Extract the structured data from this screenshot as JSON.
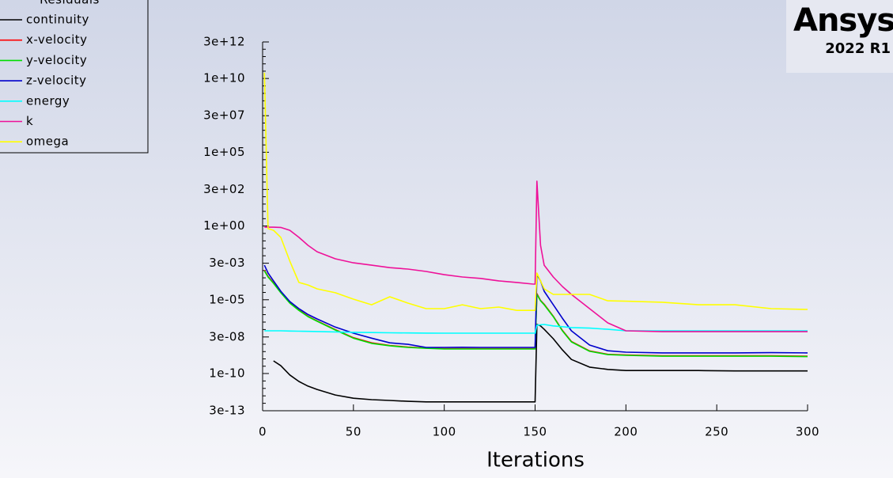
{
  "chart_data": {
    "type": "line",
    "legend_title": "Residuals",
    "logo": "Ansys",
    "version": "2022 R1",
    "xlabel": "Iterations",
    "yscale": "log",
    "legend": "upper left",
    "x": [
      1,
      3,
      6,
      10,
      15,
      20,
      25,
      30,
      40,
      50,
      60,
      70,
      80,
      90,
      100,
      110,
      120,
      130,
      140,
      149,
      150,
      151,
      153,
      155,
      160,
      165,
      170,
      180,
      190,
      200,
      220,
      240,
      260,
      280,
      300
    ],
    "xlim": [
      0,
      300
    ],
    "xticks": [
      0,
      50,
      100,
      150,
      200,
      250,
      300
    ],
    "ylim": [
      3e-13,
      3000000000000.0
    ],
    "yticks": [
      {
        "value": 3000000000000.0,
        "label": "3e+12"
      },
      {
        "value": 10000000000.0,
        "label": "1e+10"
      },
      {
        "value": 30000000.0,
        "label": "3e+07"
      },
      {
        "value": 100000.0,
        "label": "1e+05"
      },
      {
        "value": 300,
        "label": "3e+02"
      },
      {
        "value": 1,
        "label": "1e+00"
      },
      {
        "value": 0.003,
        "label": "3e-03"
      },
      {
        "value": 1e-05,
        "label": "1e-05"
      },
      {
        "value": 3e-08,
        "label": "3e-08"
      },
      {
        "value": 1e-10,
        "label": "1e-10"
      },
      {
        "value": 3e-13,
        "label": "3e-13"
      }
    ],
    "series": [
      {
        "name": "continuity",
        "color": "#000000",
        "values": [
          null,
          null,
          7.2e-10,
          3.4e-10,
          8e-11,
          2.9e-11,
          1.4e-11,
          8.3e-12,
          3.5e-12,
          2.1e-12,
          1.7e-12,
          1.5e-12,
          1.3e-12,
          1.2e-12,
          1.2e-12,
          1.2e-12,
          1.2e-12,
          1.2e-12,
          1.2e-12,
          1.2e-12,
          1.2e-12,
          2.1e-07,
          1.7e-07,
          1e-07,
          2.3e-08,
          4e-09,
          9e-10,
          2.7e-10,
          1.9e-10,
          1.6e-10,
          1.6e-10,
          1.6e-10,
          1.5e-10,
          1.5e-10,
          1.5e-10
        ]
      },
      {
        "name": "x-velocity",
        "color": "#ff0000",
        "values": [
          0.001,
          0.00038,
          0.00014,
          3.2e-05,
          6.3e-06,
          2e-06,
          7.6e-07,
          3.7e-07,
          9.5e-08,
          2.7e-08,
          1.2e-08,
          8e-09,
          6.2e-09,
          5.3e-09,
          4.8e-09,
          4.8e-09,
          4.8e-09,
          4.8e-09,
          4.8e-09,
          4.8e-09,
          4.8e-09,
          2.6e-05,
          9e-06,
          5e-06,
          7.6e-07,
          8.5e-08,
          1.5e-08,
          3.4e-09,
          2e-09,
          1.8e-09,
          1.6e-09,
          1.6e-09,
          1.6e-09,
          1.6e-09,
          1.5e-09
        ]
      },
      {
        "name": "y-velocity",
        "color": "#00dd00",
        "values": [
          0.0009,
          0.00035,
          0.00013,
          3e-05,
          5.9e-06,
          1.9e-06,
          7.2e-07,
          3.5e-07,
          8.9e-08,
          2.5e-08,
          1.1e-08,
          7.6e-09,
          5.9e-09,
          5.1e-09,
          4.6e-09,
          4.6e-09,
          4.6e-09,
          4.6e-09,
          4.6e-09,
          4.6e-09,
          4.6e-09,
          2.3e-05,
          8.5e-06,
          4.6e-06,
          7.2e-07,
          7.9e-08,
          1.4e-08,
          3.2e-09,
          1.9e-09,
          1.7e-09,
          1.5e-09,
          1.5e-09,
          1.5e-09,
          1.5e-09,
          1.4e-09
        ]
      },
      {
        "name": "z-velocity",
        "color": "#0000cc",
        "values": [
          0.0022,
          0.00065,
          0.00019,
          3.8e-05,
          7.6e-06,
          2.5e-06,
          1e-06,
          5e-07,
          1.4e-07,
          5.4e-08,
          2.5e-08,
          1.2e-08,
          9.5e-09,
          5.9e-09,
          5.9e-09,
          6e-09,
          5.9e-09,
          5.9e-09,
          5.9e-09,
          5.9e-09,
          5.9e-09,
          0.0005,
          0.00019,
          3.8e-05,
          4.6e-06,
          5.6e-07,
          7.9e-08,
          8.5e-09,
          3.5e-09,
          2.8e-09,
          2.5e-09,
          2.5e-09,
          2.5e-09,
          2.6e-09,
          2.5e-09
        ]
      },
      {
        "name": "energy",
        "color": "#00ffff",
        "values": [
          7.9e-08,
          7.9e-08,
          7.9e-08,
          7.9e-08,
          7.6e-08,
          7.4e-08,
          7.2e-08,
          7e-08,
          6.6e-08,
          6.2e-08,
          6e-08,
          5.8e-08,
          5.6e-08,
          5.5e-08,
          5.4e-08,
          5.4e-08,
          5.4e-08,
          5.4e-08,
          5.4e-08,
          5.4e-08,
          5.4e-08,
          1.9e-07,
          2e-07,
          2.1e-07,
          1.7e-07,
          1.5e-07,
          1.3e-07,
          1.2e-07,
          1e-07,
          7.9e-08,
          7.9e-08,
          7.9e-08,
          7.9e-08,
          7.9e-08,
          7.9e-08
        ]
      },
      {
        "name": "k",
        "color": "#ee1199",
        "values": [
          0.83,
          0.83,
          0.83,
          0.8,
          0.51,
          0.17,
          0.049,
          0.018,
          0.006,
          0.0032,
          0.0022,
          0.0015,
          0.0012,
          0.00083,
          0.0005,
          0.00035,
          0.00028,
          0.00019,
          0.00015,
          0.000115,
          0.000115,
          1100,
          0.049,
          0.0022,
          0.00035,
          7.9e-05,
          2.3e-05,
          2.5e-06,
          2.7e-07,
          7.9e-08,
          6.9e-08,
          6.9e-08,
          6.9e-08,
          6.9e-08,
          6.9e-08
        ]
      },
      {
        "name": "omega",
        "color": "#ffff00",
        "values": [
          25000000000.0,
          0.66,
          0.51,
          0.17,
          0.0042,
          0.00015,
          0.0001,
          5.5e-05,
          3e-05,
          1.1e-05,
          4.6e-06,
          1.6e-05,
          5.9e-06,
          2.5e-06,
          2.5e-06,
          4.6e-06,
          2.5e-06,
          3.2e-06,
          1.9e-06,
          1.9e-06,
          1.9e-06,
          0.00065,
          0.00019,
          5.5e-05,
          2.3e-05,
          2.3e-05,
          2.3e-05,
          2.3e-05,
          8.5e-06,
          8e-06,
          6.8e-06,
          4.6e-06,
          4.6e-06,
          2.5e-06,
          2.2e-06
        ]
      }
    ]
  }
}
